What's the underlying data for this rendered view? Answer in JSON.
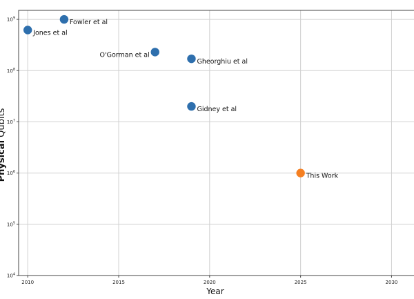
{
  "chart_data": {
    "type": "scatter",
    "xlabel": "Year",
    "ylabel": "Physical Qubits",
    "ylabel_bold_part": "Physical",
    "ylabel_rest": " Qubits",
    "xlim": [
      2009.5,
      2031.5
    ],
    "ylim": [
      10000,
      1500000000
    ],
    "yscale": "log",
    "grid": true,
    "x_ticks": [
      2010,
      2015,
      2020,
      2025,
      2030
    ],
    "x_tick_labels": [
      "2010",
      "2015",
      "2020",
      "2025",
      "2030"
    ],
    "y_ticks": [
      10000,
      100000,
      1000000,
      10000000,
      100000000,
      1000000000
    ],
    "y_tick_labels": [
      {
        "base": "10",
        "exp": "4"
      },
      {
        "base": "10",
        "exp": "5"
      },
      {
        "base": "10",
        "exp": "6"
      },
      {
        "base": "10",
        "exp": "7"
      },
      {
        "base": "10",
        "exp": "8"
      },
      {
        "base": "10",
        "exp": "9"
      }
    ],
    "points": [
      {
        "label": "Jones et al",
        "x": 2010,
        "y": 620000000,
        "color": "#2e6fad"
      },
      {
        "label": "Fowler et al",
        "x": 2012,
        "y": 1000000000,
        "color": "#2e6fad"
      },
      {
        "label": "O'Gorman et al",
        "x": 2017,
        "y": 230000000,
        "color": "#2e6fad"
      },
      {
        "label": "Gheorghiu et al",
        "x": 2019,
        "y": 170000000,
        "color": "#2e6fad"
      },
      {
        "label": "Gidney et al",
        "x": 2019,
        "y": 20000000,
        "color": "#2e6fad"
      },
      {
        "label": "This Work",
        "x": 2025,
        "y": 1000000,
        "color": "#f57f21"
      }
    ]
  }
}
